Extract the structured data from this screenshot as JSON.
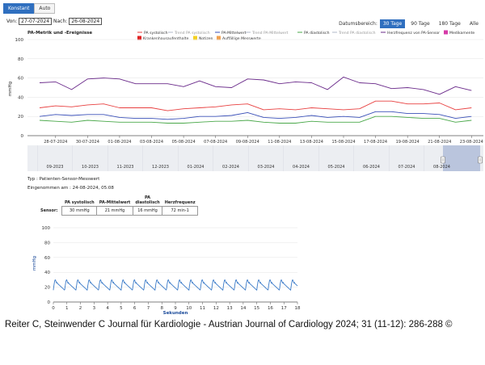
{
  "mode_toggle": {
    "konstant": "Konstant",
    "auto": "Auto"
  },
  "date_range": {
    "von_label": "Von:",
    "von_value": "27-07-2024",
    "nach_label": "Nach:",
    "nach_value": "26-08-2024"
  },
  "datumsbereich": {
    "label": "Datumsbereich:",
    "options": [
      "30 Tage",
      "90 Tage",
      "180 Tage",
      "Alle"
    ],
    "active": "30 Tage"
  },
  "main_chart": {
    "title": "PA-Metrik und -Ereignisse",
    "ylabel": "mmHg"
  },
  "legend": {
    "pa_sys": "PA systolisch",
    "trend_pa_sys": "Trend PA systolisch",
    "pa_mean": "PA-Mittelwert",
    "trend_pa_mean": "Trend PA-Mittelwert",
    "pa_dia": "PA diastolisch",
    "trend_pa_dia": "Trend PA diastolisch",
    "hr": "Herzfrequenz von PA-Sensor",
    "medikamente": "Medikamente",
    "krankenhaus": "Krankenhausaufenthalte",
    "notizen": "Notizen",
    "auffaellige": "Auffällige Messwerte"
  },
  "colors": {
    "pa_sys": "#e84040",
    "pa_mean": "#3a50b8",
    "pa_dia": "#4aa84a",
    "hr": "#6a2a8a",
    "trend": "#b0b8c8",
    "medikamente": "#d63aa8",
    "krankenhaus": "#e02020",
    "notizen": "#f4d020",
    "auffaellige": "#f0a050",
    "accent": "#2f6fbf",
    "wave": "#3a7ac8"
  },
  "chart_data": [
    {
      "type": "line",
      "title": "PA-Metrik und -Ereignisse",
      "xlabel": "",
      "ylabel": "mmHg",
      "ylim": [
        0,
        100
      ],
      "yticks": [
        0,
        20,
        40,
        60,
        80,
        100
      ],
      "grid": true,
      "legend_position": "top-right",
      "x": [
        "27-07-2024",
        "28-07-2024",
        "29-07-2024",
        "30-07-2024",
        "31-07-2024",
        "01-08-2024",
        "02-08-2024",
        "03-08-2024",
        "04-08-2024",
        "05-08-2024",
        "06-08-2024",
        "07-08-2024",
        "08-08-2024",
        "09-08-2024",
        "10-08-2024",
        "11-08-2024",
        "12-08-2024",
        "13-08-2024",
        "14-08-2024",
        "15-08-2024",
        "16-08-2024",
        "17-08-2024",
        "18-08-2024",
        "19-08-2024",
        "20-08-2024",
        "21-08-2024",
        "22-08-2024",
        "23-08-2024"
      ],
      "xtick_labels": [
        "28-07-2024",
        "30-07-2024",
        "01-08-2024",
        "03-08-2024",
        "05-08-2024",
        "07-08-2024",
        "09-08-2024",
        "11-08-2024",
        "13-08-2024",
        "15-08-2024",
        "17-08-2024",
        "19-08-2024",
        "21-08-2024",
        "23-08-2024",
        "25-08-2024"
      ],
      "series": [
        {
          "name": "Herzfrequenz von PA-Sensor",
          "values": [
            55,
            56,
            48,
            59,
            60,
            59,
            54,
            54,
            54,
            51,
            57,
            51,
            50,
            59,
            58,
            54,
            56,
            55,
            48,
            61,
            55,
            54,
            49,
            50,
            48,
            43,
            51,
            47
          ]
        },
        {
          "name": "PA systolisch",
          "values": [
            29,
            31,
            30,
            32,
            33,
            29,
            29,
            29,
            26,
            28,
            29,
            30,
            32,
            33,
            27,
            28,
            27,
            29,
            28,
            27,
            28,
            36,
            36,
            33,
            33,
            34,
            27,
            29
          ]
        },
        {
          "name": "PA-Mittelwert",
          "values": [
            20,
            22,
            21,
            22,
            22,
            19,
            18,
            18,
            17,
            18,
            20,
            20,
            21,
            24,
            19,
            18,
            19,
            21,
            19,
            20,
            19,
            25,
            25,
            23,
            23,
            22,
            18,
            20
          ]
        },
        {
          "name": "PA diastolisch",
          "values": [
            16,
            15,
            14,
            16,
            15,
            14,
            14,
            14,
            13,
            13,
            14,
            15,
            15,
            16,
            14,
            13,
            13,
            15,
            14,
            14,
            14,
            20,
            20,
            19,
            18,
            18,
            14,
            16
          ]
        }
      ]
    },
    {
      "type": "area",
      "title": "",
      "xtick_labels": [
        "09-2023",
        "10-2023",
        "11-2023",
        "12-2023",
        "01-2024",
        "02-2024",
        "03-2024",
        "04-2024",
        "05-2024",
        "06-2024",
        "07-2024",
        "08-2024"
      ],
      "selected_range": [
        "27-07-2024",
        "26-08-2024"
      ]
    },
    {
      "type": "line",
      "title": "",
      "xlabel": "Sekunden",
      "ylabel": "mmHg",
      "ylim": [
        0,
        100
      ],
      "yticks": [
        0,
        20,
        40,
        60,
        80,
        100
      ],
      "xlim": [
        0,
        18
      ],
      "xticks": [
        0,
        1,
        2,
        3,
        4,
        5,
        6,
        7,
        8,
        9,
        10,
        11,
        12,
        13,
        14,
        15,
        16,
        17,
        18
      ],
      "series": [
        {
          "name": "",
          "waveform": {
            "systolic": 30,
            "diastolic": 16,
            "beats_per_minute": 72
          }
        }
      ]
    }
  ],
  "detail": {
    "typ": "Typ : Patienten-Sensor-Messwert",
    "taken": "Eingenommen am : 24-08-2024, 05:08",
    "headers": {
      "sys": "PA systolisch",
      "mean": "PA-Mittelwert",
      "dia": "PA diastolisch",
      "hr": "Herzfrequenz"
    },
    "row_label": "Sensor:",
    "values": {
      "sys": "30 mmHg",
      "mean": "21 mmHg",
      "dia": "16 mmHg",
      "hr": "72 min-1"
    }
  },
  "footer": "Reiter C, Steinwender C Journal für Kardiologie - Austrian Journal of Cardiology 2024; 31 (11-12): 286-288 ©"
}
